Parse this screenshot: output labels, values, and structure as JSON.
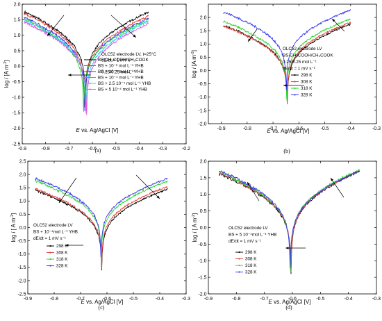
{
  "chart_data": [
    {
      "type": "line",
      "panel_label": "(a)",
      "xlabel_italic": "E",
      "xlabel": "vs. Ag/AgCl [V]",
      "ylabel_prefix": "log ",
      "ylabel_italic": "i",
      "ylabel": " [A m",
      "ylabel_sup": "-2",
      "ylabel_end": "]",
      "xlim": [
        -0.9,
        -0.2
      ],
      "ylim": [
        -2.5,
        2.0
      ],
      "xticks": [
        "-0.9",
        "-0.8",
        "-0.7",
        "-0.6",
        "-0.5",
        "-0.4",
        "-0.3",
        "-0.2"
      ],
      "yticks": [
        "-2.5",
        "-2.0",
        "-1.5",
        "-1.0",
        "-0.5",
        "0.0",
        "0.5",
        "1.0",
        "1.5",
        "2.0"
      ],
      "annotation_lines": [
        "OLC52 electrode LV, t=25°C",
        "dE/dt = 1 mV s⁻¹",
        "",
        "0.25/0.25 mol L⁻¹"
      ],
      "legend": [
        {
          "label": "BS CH₃COOH/CH₃COOK",
          "color": "#000000"
        },
        {
          "label": "BS + 10⁻⁶ mol L⁻¹ YHB",
          "color": "#e2403a"
        },
        {
          "label": "BS + 10⁻⁵ mol L⁻¹ YHB",
          "color": "#3a3af0"
        },
        {
          "label": "BS + 10⁻⁴ mol L⁻¹ YHB",
          "color": "#2bd62b"
        },
        {
          "label": "BS + 2.5 10⁻⁴ mol L⁻¹ YHB",
          "color": "#22d3ee"
        },
        {
          "label": "BS + 5 10⁻⁴ mol L⁻¹ YHB",
          "color": "#e255e2"
        }
      ],
      "series": [
        {
          "name": "BS CH₃COOH/CH₃COOK",
          "ecorr": -0.63,
          "cath_start": [
            -0.89,
            1.75
          ],
          "anod_end": [
            -0.36,
            1.75
          ]
        },
        {
          "name": "BS + 10⁻⁶ mol L⁻¹ YHB",
          "ecorr": -0.635,
          "cath_start": [
            -0.89,
            1.7
          ],
          "anod_end": [
            -0.36,
            1.62
          ]
        },
        {
          "name": "BS + 10⁻⁵ mol L⁻¹ YHB",
          "ecorr": -0.633,
          "cath_start": [
            -0.89,
            1.58
          ],
          "anod_end": [
            -0.36,
            1.55
          ]
        },
        {
          "name": "BS + 10⁻⁴ mol L⁻¹ YHB",
          "ecorr": -0.638,
          "cath_start": [
            -0.89,
            1.52
          ],
          "anod_end": [
            -0.36,
            1.5
          ]
        },
        {
          "name": "BS + 2.5 10⁻⁴ mol L⁻¹ YHB",
          "ecorr": -0.628,
          "cath_start": [
            -0.89,
            1.48
          ],
          "anod_end": [
            -0.36,
            1.45
          ]
        },
        {
          "name": "BS + 5 10⁻⁴ mol L⁻¹ YHB",
          "ecorr": -0.625,
          "cath_start": [
            -0.89,
            1.42
          ],
          "anod_end": [
            -0.36,
            1.38
          ]
        }
      ]
    },
    {
      "type": "line",
      "panel_label": "(b)",
      "xlabel_italic": "E",
      "xlabel": "vs. Ag/AgCl [V]",
      "ylabel_prefix": "log ",
      "ylabel_italic": "i",
      "ylabel": " [A m",
      "ylabel_sup": "-2",
      "ylabel_end": "]",
      "xlim": [
        -0.95,
        -0.3
      ],
      "ylim": [
        -2.0,
        2.5
      ],
      "xticks": [
        "-0.9",
        "-0.8",
        "-0.7",
        "-0.6",
        "-0.5",
        "-0.4",
        "-0.3"
      ],
      "yticks": [
        "-2.0",
        "-1.5",
        "-1.0",
        "-0.5",
        "0.0",
        "0.5",
        "1.0",
        "1.5",
        "2.0"
      ],
      "annotation_lines": [
        "OLC52 electrode LV",
        "BS CH₃COOH/CH₃COOK",
        "0.25/0.25 mol L⁻¹",
        "dE/dt = 1 mV s⁻¹"
      ],
      "legend": [
        {
          "label": "298 K",
          "color": "#000000"
        },
        {
          "label": "308 K",
          "color": "#e2403a"
        },
        {
          "label": "318 K",
          "color": "#2bd62b"
        },
        {
          "label": "328 K",
          "color": "#3a3af0"
        }
      ],
      "series": [
        {
          "name": "298 K",
          "ecorr": -0.645,
          "cath_start": [
            -0.89,
            1.7
          ],
          "anod_end": [
            -0.4,
            1.75
          ]
        },
        {
          "name": "308 K",
          "ecorr": -0.645,
          "cath_start": [
            -0.89,
            1.68
          ],
          "anod_end": [
            -0.4,
            1.82
          ]
        },
        {
          "name": "318 K",
          "ecorr": -0.647,
          "cath_start": [
            -0.89,
            1.85
          ],
          "anod_end": [
            -0.4,
            1.95
          ]
        },
        {
          "name": "328 K",
          "ecorr": -0.648,
          "cath_start": [
            -0.89,
            2.2
          ],
          "anod_end": [
            -0.4,
            2.28
          ]
        }
      ]
    },
    {
      "type": "line",
      "panel_label": "(c)",
      "xlabel_italic": "E",
      "xlabel": "vs. Ag/AgCl [V]",
      "ylabel_prefix": "log ",
      "ylabel_italic": "i",
      "ylabel": " [ A m",
      "ylabel_sup": "-2",
      "ylabel_end": "]",
      "xlim": [
        -0.9,
        -0.3
      ],
      "ylim": [
        -2.5,
        2.5
      ],
      "xticks": [
        "-0.9",
        "-0.8",
        "-0.7",
        "-0.6",
        "-0.5",
        "-0.4",
        "-0.3"
      ],
      "yticks": [
        "-2.5",
        "-2.0",
        "-1.5",
        "-1.0",
        "-0.5",
        "0.0",
        "0.5",
        "1.0",
        "1.5",
        "2.0",
        "2.5"
      ],
      "annotation_lines": [
        "OLC52 electrode LV",
        "BS + 10⁻⁴mol L⁻¹ YHB",
        "dE/dt = 1 mV s⁻¹"
      ],
      "legend": [
        {
          "label": "298 K",
          "color": "#000000"
        },
        {
          "label": "308 K",
          "color": "#e2403a"
        },
        {
          "label": "318 K",
          "color": "#2bd62b"
        },
        {
          "label": "328 K",
          "color": "#3a3af0"
        }
      ],
      "series": [
        {
          "name": "298 K",
          "ecorr": -0.62,
          "cath_start": [
            -0.87,
            1.4
          ],
          "anod_end": [
            -0.37,
            1.45
          ]
        },
        {
          "name": "308 K",
          "ecorr": -0.62,
          "cath_start": [
            -0.87,
            1.45
          ],
          "anod_end": [
            -0.37,
            1.55
          ]
        },
        {
          "name": "318 K",
          "ecorr": -0.622,
          "cath_start": [
            -0.87,
            1.75
          ],
          "anod_end": [
            -0.37,
            1.75
          ]
        },
        {
          "name": "328 K",
          "ecorr": -0.623,
          "cath_start": [
            -0.87,
            1.85
          ],
          "anod_end": [
            -0.37,
            1.85
          ]
        }
      ]
    },
    {
      "type": "line",
      "panel_label": "(d)",
      "xlabel_italic": "E",
      "xlabel": "vs. Ag/AgCl [V]",
      "ylabel_prefix": "log ",
      "ylabel_italic": "i",
      "ylabel": " [ A m",
      "ylabel_sup": "-2",
      "ylabel_end": "]",
      "xlim": [
        -0.9,
        -0.3
      ],
      "ylim": [
        -2.0,
        2.0
      ],
      "xticks": [
        "-0.9",
        "-0.8",
        "-0.7",
        "-0.6",
        "-0.5",
        "-0.4",
        "-0.3"
      ],
      "yticks": [
        "-2.0",
        "-1.5",
        "-1.0",
        "-0.5",
        "0.0",
        "0.5",
        "1.0",
        "1.5",
        "2.0"
      ],
      "annotation_lines": [
        "OLC52 electrode LV",
        "BS + 5 10⁻⁴mol L⁻¹ YHB",
        "dE/dt = 1 mV s⁻¹"
      ],
      "legend": [
        {
          "label": "298 K",
          "color": "#000000"
        },
        {
          "label": "308 K",
          "color": "#e2403a"
        },
        {
          "label": "318 K",
          "color": "#2bd62b"
        },
        {
          "label": "328 K",
          "color": "#3a3af0"
        }
      ],
      "series": [
        {
          "name": "298 K",
          "ecorr": -0.605,
          "cath_start": [
            -0.86,
            1.62
          ],
          "anod_end": [
            -0.36,
            1.7
          ]
        },
        {
          "name": "308 K",
          "ecorr": -0.605,
          "cath_start": [
            -0.86,
            1.65
          ],
          "anod_end": [
            -0.36,
            1.72
          ]
        },
        {
          "name": "318 K",
          "ecorr": -0.607,
          "cath_start": [
            -0.86,
            1.68
          ],
          "anod_end": [
            -0.36,
            1.75
          ]
        },
        {
          "name": "328 K",
          "ecorr": -0.608,
          "cath_start": [
            -0.86,
            1.72
          ],
          "anod_end": [
            -0.36,
            1.72
          ]
        }
      ]
    }
  ]
}
